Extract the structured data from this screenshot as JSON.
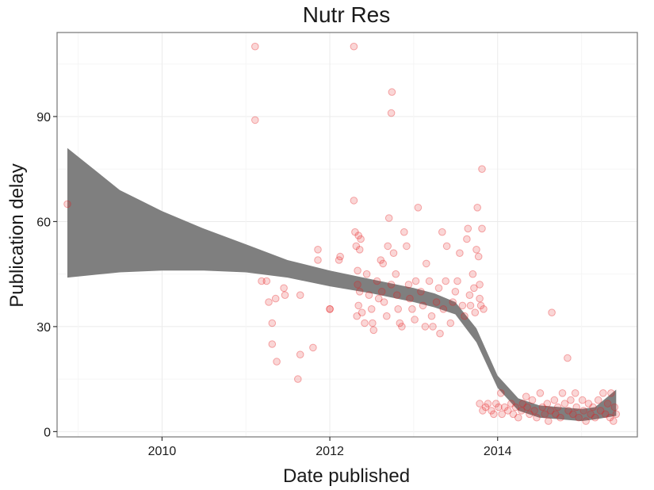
{
  "chart_data": {
    "type": "scatter",
    "title": "Nutr Res",
    "xlabel": "Date published",
    "ylabel": "Publication delay",
    "xlim": [
      "2008-10-01",
      "2015-09-01"
    ],
    "ylim": [
      -1.5,
      114
    ],
    "x_ticks": [
      "2010-01-01",
      "2012-01-01",
      "2014-01-01"
    ],
    "x_tick_labels": [
      "2010",
      "2012",
      "2014"
    ],
    "y_ticks": [
      0,
      30,
      60,
      90
    ],
    "y_tick_labels": [
      "0",
      "30",
      "60",
      "90"
    ],
    "grid": true,
    "point_color": "#e41a1c",
    "band_color": "#7f7f7f",
    "points": [
      [
        "2008-11-15",
        65
      ],
      [
        "2011-02-10",
        110
      ],
      [
        "2011-02-10",
        89
      ],
      [
        "2011-03-10",
        43
      ],
      [
        "2011-04-01",
        43
      ],
      [
        "2011-04-10",
        37
      ],
      [
        "2011-04-25",
        31
      ],
      [
        "2011-04-25",
        25
      ],
      [
        "2011-05-10",
        38
      ],
      [
        "2011-05-15",
        20
      ],
      [
        "2011-06-15",
        41
      ],
      [
        "2011-06-20",
        39
      ],
      [
        "2011-08-15",
        15
      ],
      [
        "2011-08-25",
        22
      ],
      [
        "2011-08-25",
        39
      ],
      [
        "2011-10-20",
        24
      ],
      [
        "2011-11-10",
        49
      ],
      [
        "2011-11-10",
        52
      ],
      [
        "2012-01-01",
        35
      ],
      [
        "2012-01-01",
        35
      ],
      [
        "2012-02-10",
        49
      ],
      [
        "2012-02-15",
        50
      ],
      [
        "2012-04-15",
        110
      ],
      [
        "2012-04-15",
        66
      ],
      [
        "2012-04-20",
        57
      ],
      [
        "2012-04-25",
        53
      ],
      [
        "2012-05-05",
        56
      ],
      [
        "2012-05-10",
        52
      ],
      [
        "2012-05-15",
        55
      ],
      [
        "2012-05-01",
        46
      ],
      [
        "2012-05-01",
        42
      ],
      [
        "2012-05-10",
        40
      ],
      [
        "2012-05-05",
        36
      ],
      [
        "2012-04-28",
        33
      ],
      [
        "2012-05-20",
        34
      ],
      [
        "2012-06-01",
        31
      ],
      [
        "2012-06-10",
        45
      ],
      [
        "2012-06-20",
        39
      ],
      [
        "2012-07-01",
        35
      ],
      [
        "2012-07-05",
        31
      ],
      [
        "2012-07-10",
        29
      ],
      [
        "2012-07-25",
        43
      ],
      [
        "2012-08-01",
        38
      ],
      [
        "2012-08-10",
        49
      ],
      [
        "2012-08-20",
        48
      ],
      [
        "2012-08-15",
        40
      ],
      [
        "2012-08-25",
        37
      ],
      [
        "2012-09-05",
        33
      ],
      [
        "2012-09-10",
        53
      ],
      [
        "2012-09-15",
        61
      ],
      [
        "2012-09-25",
        42
      ],
      [
        "2012-09-28",
        97
      ],
      [
        "2012-09-25",
        91
      ],
      [
        "2012-10-05",
        51
      ],
      [
        "2012-10-15",
        45
      ],
      [
        "2012-10-20",
        39
      ],
      [
        "2012-10-25",
        35
      ],
      [
        "2012-11-01",
        31
      ],
      [
        "2012-11-10",
        30
      ],
      [
        "2012-11-20",
        57
      ],
      [
        "2012-12-01",
        53
      ],
      [
        "2012-12-10",
        42
      ],
      [
        "2012-12-15",
        38
      ],
      [
        "2012-12-25",
        35
      ],
      [
        "2013-01-05",
        32
      ],
      [
        "2013-01-10",
        43
      ],
      [
        "2013-01-20",
        64
      ],
      [
        "2013-02-01",
        40
      ],
      [
        "2013-02-10",
        36
      ],
      [
        "2013-02-20",
        30
      ],
      [
        "2013-02-25",
        48
      ],
      [
        "2013-03-10",
        43
      ],
      [
        "2013-03-20",
        33
      ],
      [
        "2013-03-25",
        30
      ],
      [
        "2013-04-10",
        37
      ],
      [
        "2013-04-20",
        41
      ],
      [
        "2013-04-25",
        28
      ],
      [
        "2013-05-05",
        57
      ],
      [
        "2013-05-10",
        35
      ],
      [
        "2013-05-20",
        43
      ],
      [
        "2013-05-25",
        53
      ],
      [
        "2013-06-10",
        31
      ],
      [
        "2013-06-20",
        37
      ],
      [
        "2013-07-01",
        40
      ],
      [
        "2013-07-10",
        43
      ],
      [
        "2013-07-20",
        51
      ],
      [
        "2013-08-01",
        36
      ],
      [
        "2013-08-10",
        33
      ],
      [
        "2013-08-20",
        55
      ],
      [
        "2013-08-25",
        58
      ],
      [
        "2013-09-01",
        39
      ],
      [
        "2013-09-05",
        36
      ],
      [
        "2013-09-15",
        45
      ],
      [
        "2013-09-20",
        41
      ],
      [
        "2013-09-25",
        34
      ],
      [
        "2013-10-01",
        52
      ],
      [
        "2013-10-05",
        64
      ],
      [
        "2013-10-10",
        50
      ],
      [
        "2013-10-15",
        42
      ],
      [
        "2013-10-15",
        38
      ],
      [
        "2013-10-20",
        36
      ],
      [
        "2013-10-25",
        75
      ],
      [
        "2013-10-25",
        58
      ],
      [
        "2013-11-01",
        35
      ],
      [
        "2013-10-15",
        8
      ],
      [
        "2013-10-28",
        6
      ],
      [
        "2013-11-10",
        7
      ],
      [
        "2013-11-20",
        8
      ],
      [
        "2013-12-05",
        6
      ],
      [
        "2013-12-15",
        5
      ],
      [
        "2013-12-25",
        8
      ],
      [
        "2014-01-05",
        7
      ],
      [
        "2014-01-15",
        11
      ],
      [
        "2014-01-20",
        5
      ],
      [
        "2014-02-01",
        7
      ],
      [
        "2014-02-15",
        6
      ],
      [
        "2014-03-01",
        8
      ],
      [
        "2014-03-10",
        5
      ],
      [
        "2014-03-20",
        7
      ],
      [
        "2014-04-01",
        4
      ],
      [
        "2014-04-15",
        6
      ],
      [
        "2014-04-20",
        8
      ],
      [
        "2014-05-05",
        10
      ],
      [
        "2014-05-10",
        7
      ],
      [
        "2014-05-20",
        5
      ],
      [
        "2014-06-01",
        9
      ],
      [
        "2014-06-10",
        6
      ],
      [
        "2014-06-20",
        4
      ],
      [
        "2014-07-05",
        11
      ],
      [
        "2014-07-15",
        7
      ],
      [
        "2014-07-25",
        5
      ],
      [
        "2014-08-05",
        8
      ],
      [
        "2014-08-10",
        3
      ],
      [
        "2014-08-20",
        6
      ],
      [
        "2014-08-25",
        34
      ],
      [
        "2014-09-05",
        9
      ],
      [
        "2014-09-10",
        5
      ],
      [
        "2014-09-20",
        7
      ],
      [
        "2014-10-01",
        4
      ],
      [
        "2014-10-10",
        11
      ],
      [
        "2014-10-20",
        8
      ],
      [
        "2014-11-01",
        21
      ],
      [
        "2014-11-05",
        6
      ],
      [
        "2014-11-15",
        9
      ],
      [
        "2014-11-25",
        5
      ],
      [
        "2014-12-05",
        11
      ],
      [
        "2014-12-10",
        7
      ],
      [
        "2014-12-20",
        4
      ],
      [
        "2015-01-05",
        9
      ],
      [
        "2015-01-10",
        6
      ],
      [
        "2015-01-20",
        3
      ],
      [
        "2015-02-01",
        8
      ],
      [
        "2015-02-10",
        5
      ],
      [
        "2015-02-20",
        7
      ],
      [
        "2015-03-01",
        4
      ],
      [
        "2015-03-15",
        9
      ],
      [
        "2015-03-25",
        6
      ],
      [
        "2015-04-05",
        11
      ],
      [
        "2015-04-15",
        5
      ],
      [
        "2015-04-25",
        8
      ],
      [
        "2015-05-05",
        4
      ],
      [
        "2015-05-10",
        11
      ],
      [
        "2015-05-20",
        3
      ],
      [
        "2015-05-25",
        7
      ],
      [
        "2015-06-01",
        5
      ]
    ],
    "smooth_band": {
      "x": [
        "2008-11-15",
        "2009-07-01",
        "2010-01-01",
        "2010-07-01",
        "2011-01-01",
        "2011-07-01",
        "2012-01-01",
        "2012-07-01",
        "2013-01-01",
        "2013-04-01",
        "2013-07-01",
        "2013-10-01",
        "2014-01-01",
        "2014-04-01",
        "2014-07-01",
        "2014-10-01",
        "2015-01-01",
        "2015-03-01",
        "2015-06-01"
      ],
      "upper": [
        81,
        69,
        63,
        58,
        53.5,
        49,
        46,
        43.5,
        41,
        39.5,
        37,
        29.5,
        16,
        9.5,
        7.5,
        7,
        6.5,
        7,
        12
      ],
      "lower": [
        44,
        45.5,
        46,
        46,
        45.5,
        44,
        41.5,
        39.5,
        37,
        35.5,
        33.5,
        25.5,
        12.5,
        6,
        4,
        3.5,
        3,
        3.5,
        4.5
      ]
    }
  }
}
